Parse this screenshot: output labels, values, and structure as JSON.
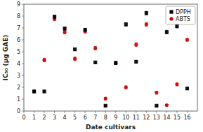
{
  "chart_data": {
    "type": "scatter",
    "xlabel": "Date cultivars",
    "ylabel": "IC₅₀ (μg GAE)",
    "x": [
      1,
      2,
      3,
      4,
      5,
      6,
      7,
      8,
      9,
      10,
      11,
      12,
      13,
      14,
      15,
      16
    ],
    "xlim": [
      0,
      17
    ],
    "ylim": [
      0,
      9
    ],
    "xticks": [
      0,
      1,
      2,
      3,
      4,
      5,
      6,
      7,
      8,
      9,
      10,
      11,
      12,
      13,
      14,
      15,
      16
    ],
    "yticks": [
      0,
      1,
      2,
      3,
      4,
      5,
      6,
      7,
      8,
      9
    ],
    "grid": false,
    "legend": "upper right",
    "series": [
      {
        "name": "DPPH",
        "color": "#000000",
        "marker": "square",
        "values": [
          1.65,
          1.65,
          7.95,
          6.95,
          5.2,
          6.85,
          4.1,
          0.45,
          4.05,
          7.3,
          4.15,
          8.25,
          0.45,
          6.65,
          7.15,
          1.9
        ],
        "errors": [
          0.1,
          0.1,
          0.12,
          0.12,
          0.12,
          0.12,
          0.1,
          0.05,
          0.12,
          0.15,
          0.12,
          0.15,
          0.05,
          0.15,
          0.15,
          0.1
        ]
      },
      {
        "name": "ABTS",
        "color": "#cc0000",
        "marker": "circle",
        "values": [
          1.65,
          4.3,
          7.75,
          6.65,
          4.4,
          6.7,
          5.3,
          1.05,
          4.05,
          2.0,
          5.6,
          7.3,
          1.55,
          0.5,
          2.25,
          6.0
        ],
        "errors": [
          0.1,
          0.15,
          0.12,
          0.15,
          0.15,
          0.12,
          0.15,
          0.1,
          0.12,
          0.12,
          0.15,
          0.15,
          0.12,
          0.05,
          0.12,
          0.12
        ]
      }
    ]
  }
}
